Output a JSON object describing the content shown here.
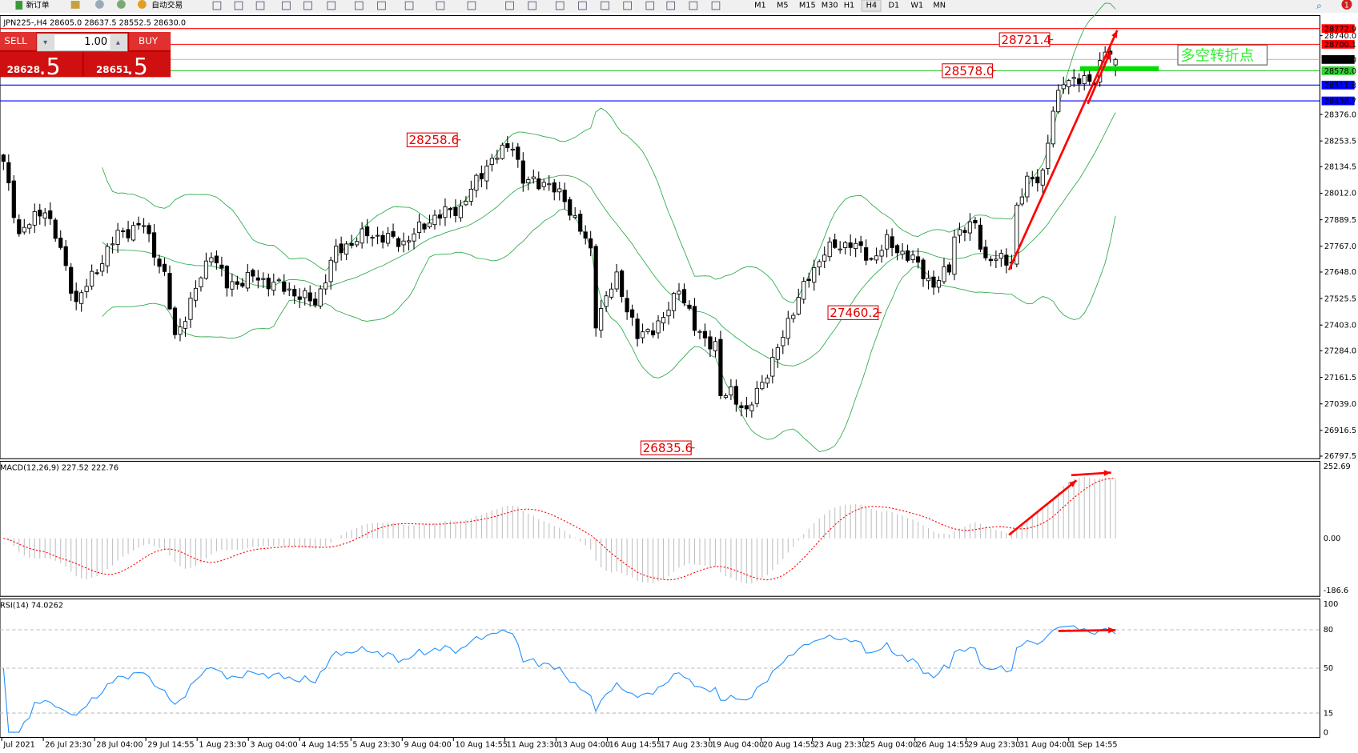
{
  "toolbar": {
    "new_order_label": "新订单",
    "auto_trading_label": "自动交易",
    "timeframes": [
      "M1",
      "M5",
      "M15",
      "M30",
      "H1",
      "H4",
      "D1",
      "W1",
      "MN"
    ],
    "active_timeframe": "H4",
    "notification_count": "1"
  },
  "chart": {
    "header": "JPN225-,H4  28605.0 28637.5 28552.5 28630.0",
    "symbol": "JPN225-",
    "period": "H4",
    "last_bar": {
      "open": 28605.0,
      "high": 28637.5,
      "low": 28552.5,
      "close": 28630.0
    },
    "price_path": [
      [
        0,
        28145
      ],
      [
        3,
        27825
      ],
      [
        8,
        27945
      ],
      [
        11,
        27745
      ],
      [
        14,
        27505
      ],
      [
        18,
        27665
      ],
      [
        22,
        27825
      ],
      [
        27,
        27865
      ],
      [
        31,
        27625
      ],
      [
        33,
        27345
      ],
      [
        36,
        27505
      ],
      [
        40,
        27745
      ],
      [
        43,
        27585
      ],
      [
        48,
        27625
      ],
      [
        53,
        27585
      ],
      [
        60,
        27505
      ],
      [
        64,
        27745
      ],
      [
        70,
        27825
      ],
      [
        77,
        27785
      ],
      [
        83,
        27905
      ],
      [
        88,
        27945
      ],
      [
        93,
        28145
      ],
      [
        98,
        28245
      ],
      [
        100,
        28065
      ],
      [
        104,
        28065
      ],
      [
        108,
        27985
      ],
      [
        113,
        27745
      ],
      [
        114,
        27425
      ],
      [
        118,
        27625
      ],
      [
        122,
        27345
      ],
      [
        127,
        27425
      ],
      [
        130,
        27585
      ],
      [
        133,
        27385
      ],
      [
        137,
        27305
      ],
      [
        138,
        27065
      ],
      [
        140,
        27105
      ],
      [
        143,
        26985
      ],
      [
        145,
        27105
      ],
      [
        148,
        27225
      ],
      [
        151,
        27425
      ],
      [
        155,
        27625
      ],
      [
        158,
        27745
      ],
      [
        163,
        27785
      ],
      [
        167,
        27705
      ],
      [
        170,
        27785
      ],
      [
        175,
        27705
      ],
      [
        179,
        27585
      ],
      [
        182,
        27665
      ],
      [
        183,
        27825
      ],
      [
        187,
        27865
      ],
      [
        189,
        27705
      ],
      [
        194,
        27705
      ],
      [
        195,
        27945
      ],
      [
        197,
        28065
      ],
      [
        200,
        28105
      ],
      [
        202,
        28385
      ],
      [
        204,
        28545
      ],
      [
        207,
        28525
      ],
      [
        210,
        28545
      ],
      [
        212,
        28665
      ],
      [
        214,
        28630
      ]
    ],
    "price_axis": [
      "28740.0",
      "28376.0",
      "28253.5",
      "28134.5",
      "28012.0",
      "27889.5",
      "27767.0",
      "27648.0",
      "27525.5",
      "27403.0",
      "27284.0",
      "27161.5",
      "27039.0",
      "26916.5",
      "26797.5"
    ],
    "price_range": [
      26797.5,
      28772.9
    ],
    "horizontal_lines": [
      {
        "price": "28772.9",
        "color": "#ff0000"
      },
      {
        "price": "28700.1",
        "color": "#ff0000"
      },
      {
        "price": "28630.0",
        "color": "#000000",
        "line": "#c0c0c0"
      },
      {
        "price": "28578.0",
        "color": "#32cd32"
      },
      {
        "price": "28511.8",
        "color": "#0000ff"
      },
      {
        "price": "28438.7",
        "color": "#0000ff"
      }
    ],
    "price_labels": [
      {
        "text": "28258.6",
        "bar": 88,
        "price": 28258.6
      },
      {
        "text": "28721.4",
        "bar": 202,
        "price": 28721.4
      },
      {
        "text": "28578.0",
        "bar": 191,
        "price": 28578.0
      },
      {
        "text": "27460.2",
        "bar": 169,
        "price": 27460.2
      },
      {
        "text": "26835.6",
        "bar": 133,
        "price": 26835.6
      }
    ],
    "annotation_text": "多空转折点",
    "bollinger": {
      "period": 20,
      "deviation": 2,
      "color": "#2eaa4a"
    },
    "colors": {
      "bull": "#ffffff",
      "bear": "#000000",
      "arrow": "#ff0000",
      "pivot_bar": "#00e000"
    }
  },
  "macd": {
    "label": "MACD(12,26,9) 227.52 222.76",
    "axis": [
      "252.69",
      "0.00",
      "-186.6"
    ],
    "range": [
      -186.6,
      252.69
    ],
    "histogram_color": "#c0c0c0",
    "signal_color": "#ff0000"
  },
  "rsi": {
    "label": "RSI(14) 74.0262",
    "axis": [
      "100",
      "80",
      "50",
      "15",
      "0"
    ],
    "levels": [
      80,
      50,
      15
    ],
    "line_color": "#1e90ff"
  },
  "time_axis": [
    "Jul 2021",
    "26 Jul 23:30",
    "28 Jul 04:00",
    "29 Jul 14:55",
    "1 Aug 23:30",
    "3 Aug 04:00",
    "4 Aug 14:55",
    "5 Aug 23:30",
    "9 Aug 04:00",
    "10 Aug 14:55",
    "11 Aug 23:30",
    "13 Aug 04:00",
    "16 Aug 14:55",
    "17 Aug 23:30",
    "19 Aug 04:00",
    "20 Aug 14:55",
    "23 Aug 23:30",
    "25 Aug 04:00",
    "26 Aug 14:55",
    "29 Aug 23:30",
    "31 Aug 04:00",
    "1 Sep 14:55"
  ],
  "trade_panel": {
    "sell_label": "SELL",
    "buy_label": "BUY",
    "volume": "1.00",
    "sell_price_main": "28628",
    "sell_price_frac": ".5",
    "buy_price_main": "28651",
    "buy_price_frac": ".5"
  }
}
